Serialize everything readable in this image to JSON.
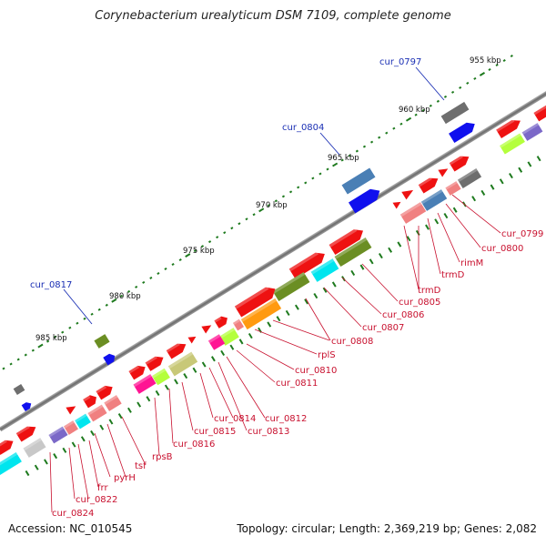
{
  "title": "Corynebacterium urealyticum DSM 7109, complete genome",
  "footer": {
    "accession": "Accession: NC_010545",
    "topology": "Topology: circular; Length: 2,369,219 bp; Genes: 2,082"
  },
  "scale_labels": [
    "955 kbp",
    "960 kbp",
    "965 kbp",
    "970 kbp",
    "975 kbp",
    "980 kbp",
    "985 kbp"
  ],
  "upper_labels": [
    "cur_0797",
    "cur_0804",
    "cur_0817"
  ],
  "lower_labels": [
    "cur_0799",
    "cur_0800",
    "rimM",
    "trmD",
    "trmD",
    "cur_0805",
    "cur_0806",
    "cur_0807",
    "cur_0808",
    "rplS",
    "cur_0810",
    "cur_0811",
    "cur_0812",
    "cur_0813",
    "cur_0814",
    "cur_0815",
    "cur_0816",
    "rpsB",
    "tsf",
    "pyrH",
    "frr",
    "cur_0822",
    "cur_0824"
  ],
  "colors": {
    "backbone": "#8a8a8a",
    "tick": "#1e7a1e",
    "red": "#ee1111",
    "blue": "#1010ee",
    "steelblue": "#4a7fb5",
    "olive": "#6b8e23",
    "grey": "#6e6e6e",
    "cyan": "#00e5ee",
    "orange": "#ff9a10",
    "lime": "#b4ff3c",
    "pink": "#f08080",
    "magenta": "#ff1493",
    "khaki": "#c8c878",
    "purple": "#7b68c8",
    "silver": "#c8c8c8"
  }
}
